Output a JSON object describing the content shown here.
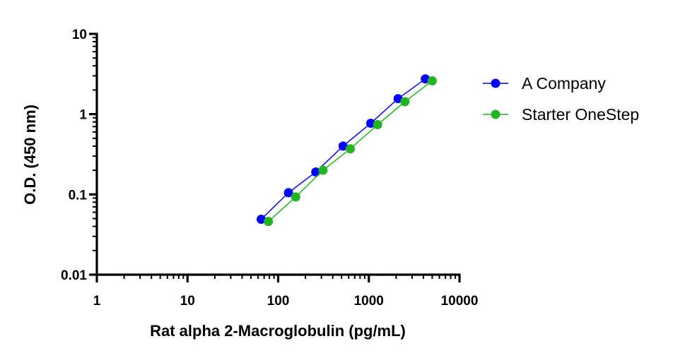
{
  "chart_data": {
    "type": "line",
    "xlabel": "Rat alpha 2-Macroglobulin (pg/mL)",
    "ylabel": "O.D. (450 nm)",
    "x_scale": "log",
    "y_scale": "log",
    "xlim": [
      1,
      10000
    ],
    "ylim": [
      0.01,
      10
    ],
    "x_ticks": [
      "1",
      "10",
      "100",
      "1000",
      "10000"
    ],
    "y_ticks": [
      "0.01",
      "0.1",
      "1",
      "10"
    ],
    "grid": false,
    "legend_position": "right",
    "series": [
      {
        "name": "A Company",
        "color": "#0000ff",
        "marker": "circle",
        "x": [
          65,
          130,
          260,
          520,
          1050,
          2100,
          4200
        ],
        "y": [
          0.049,
          0.105,
          0.19,
          0.4,
          0.77,
          1.56,
          2.75
        ]
      },
      {
        "name": "Starter OneStep",
        "color": "#22b422",
        "marker": "circle",
        "x": [
          78,
          156,
          312,
          625,
          1250,
          2500,
          5000
        ],
        "y": [
          0.046,
          0.093,
          0.2,
          0.37,
          0.74,
          1.43,
          2.6
        ]
      }
    ]
  }
}
